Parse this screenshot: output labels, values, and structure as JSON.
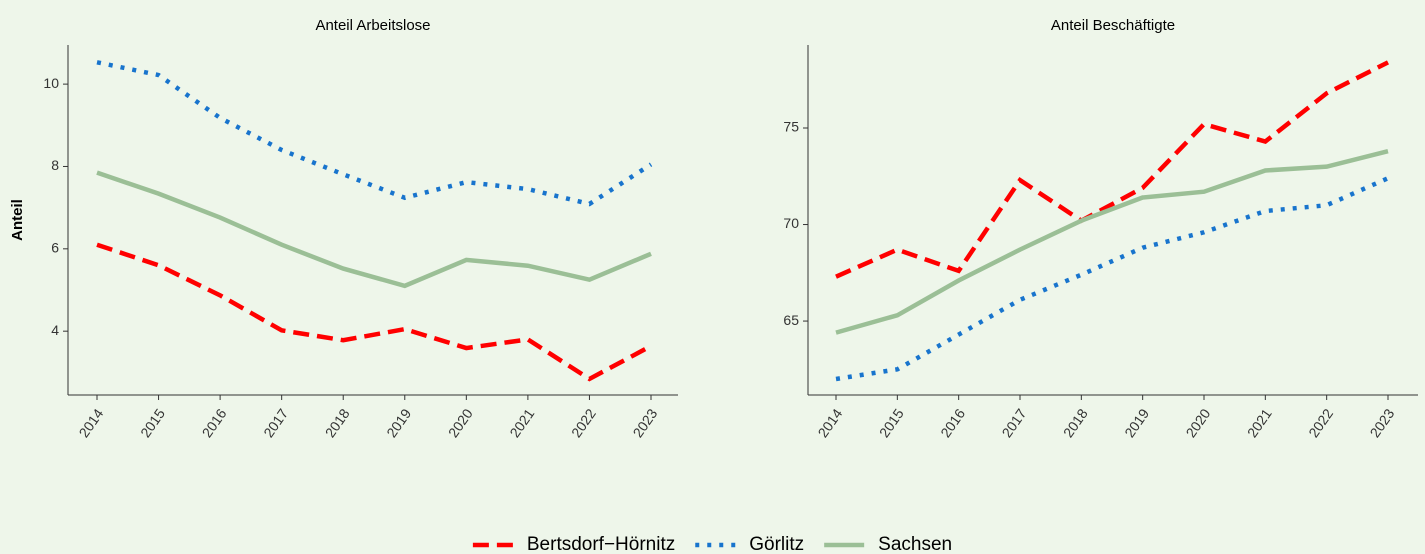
{
  "chart_data": [
    {
      "type": "line",
      "title": "Anteil Arbeitslose",
      "y_label": "Anteil",
      "x": [
        "2014",
        "2015",
        "2016",
        "2017",
        "2018",
        "2019",
        "2020",
        "2021",
        "2022",
        "2023"
      ],
      "ylim": [
        2.45,
        10.95
      ],
      "yticks": [
        4,
        6,
        8,
        10
      ],
      "series": [
        {
          "name": "Bertsdorf−Hörnitz",
          "color": "#ff0000",
          "dash": "dashed",
          "values": [
            6.1,
            5.6,
            4.87,
            4.02,
            3.78,
            4.05,
            3.59,
            3.8,
            2.84,
            3.64
          ]
        },
        {
          "name": "Görlitz",
          "color": "#1874cd",
          "dash": "dotted",
          "values": [
            10.53,
            10.22,
            9.18,
            8.4,
            7.81,
            7.24,
            7.62,
            7.45,
            7.09,
            8.05
          ]
        },
        {
          "name": "Sachsen",
          "color": "#9bbf96",
          "dash": "solid",
          "values": [
            7.85,
            7.34,
            6.76,
            6.1,
            5.52,
            5.1,
            5.73,
            5.59,
            5.25,
            5.88
          ]
        }
      ]
    },
    {
      "type": "line",
      "title": "Anteil Beschäftigte",
      "x": [
        "2014",
        "2015",
        "2016",
        "2017",
        "2018",
        "2019",
        "2020",
        "2021",
        "2022",
        "2023"
      ],
      "ylim": [
        61.17,
        79.3
      ],
      "yticks": [
        65,
        70,
        75
      ],
      "series": [
        {
          "color": "#ff0000",
          "dash": "dashed",
          "values": [
            67.3,
            68.7,
            67.6,
            72.3,
            70.2,
            71.9,
            75.2,
            74.3,
            76.8,
            78.4
          ]
        },
        {
          "color": "#1874cd",
          "dash": "dotted",
          "values": [
            62.0,
            62.5,
            64.3,
            66.1,
            67.4,
            68.8,
            69.6,
            70.7,
            71.0,
            72.4
          ]
        },
        {
          "color": "#9bbf96",
          "dash": "solid",
          "values": [
            64.4,
            65.3,
            67.1,
            68.7,
            70.2,
            71.4,
            71.7,
            72.8,
            73.0,
            73.8
          ]
        }
      ]
    }
  ]
}
